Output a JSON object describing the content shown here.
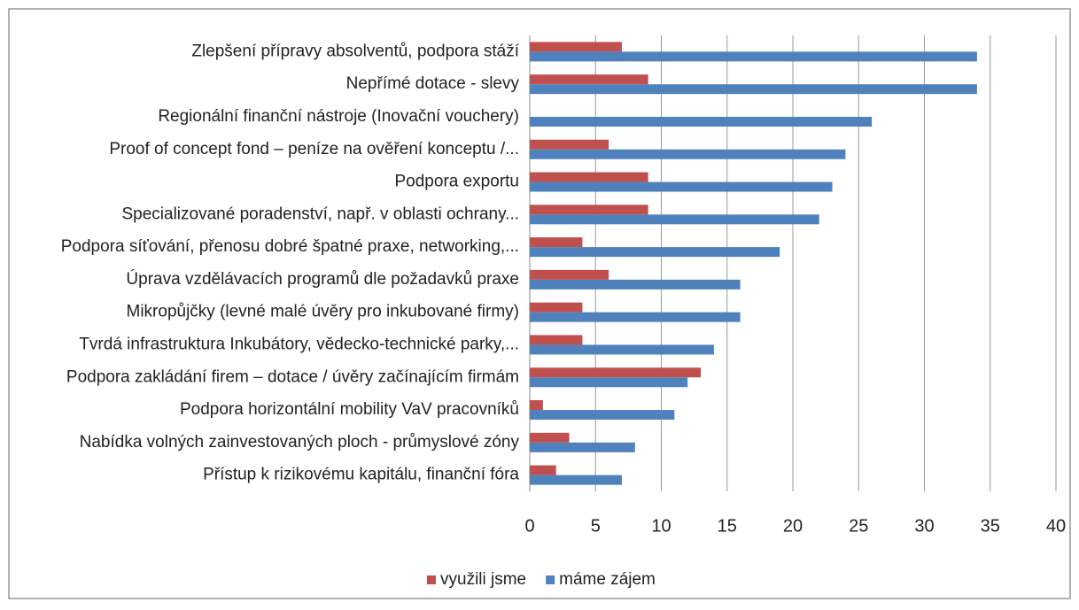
{
  "chart_data": {
    "type": "bar",
    "orientation": "horizontal",
    "categories": [
      "Zlepšení přípravy absolventů, podpora stáží",
      "Nepřímé dotace - slevy",
      "Regionální finanční nástroje (Inovační vouchery)",
      "Proof of concept fond – peníze na ověření konceptu /...",
      "Podpora exportu",
      "Specializované poradenství, např. v oblasti ochrany...",
      "Podpora síťování, přenosu dobré špatné praxe, networking,...",
      "Úprava vzdělávacích programů dle požadavků praxe",
      "Mikropůjčky (levné malé úvěry pro inkubované firmy)",
      "Tvrdá infrastruktura Inkubátory, vědecko-technické parky,...",
      "Podpora zakládání firem – dotace / úvěry začínajícím firmám",
      "Podpora horizontální mobility VaV pracovníků",
      "Nabídka volných zainvestovaných ploch - průmyslové zóny",
      "Přístup k rizikovému kapitálu, finanční fóra"
    ],
    "series": [
      {
        "name": "využili jsme",
        "color": "#c0504d",
        "values": [
          7,
          9,
          0,
          6,
          9,
          9,
          4,
          6,
          4,
          4,
          13,
          1,
          3,
          2
        ]
      },
      {
        "name": "máme zájem",
        "color": "#4f81bd",
        "values": [
          34,
          34,
          26,
          24,
          23,
          22,
          19,
          16,
          16,
          14,
          12,
          11,
          8,
          7
        ]
      }
    ],
    "xlim": [
      0,
      40
    ],
    "xticks": [
      0,
      5,
      10,
      15,
      20,
      25,
      30,
      35,
      40
    ],
    "grid": true,
    "legend": "bottom"
  }
}
